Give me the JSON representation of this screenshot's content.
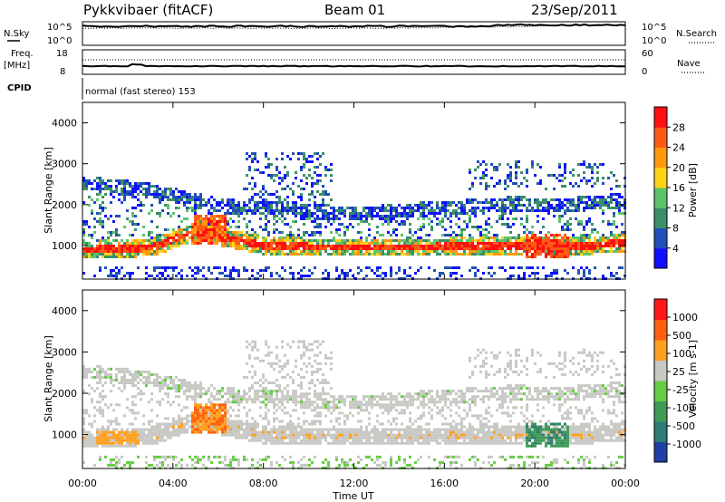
{
  "header": {
    "station": "Pykkvibaer (fitACF)",
    "beam": "Beam 01",
    "date": "23/Sep/2011"
  },
  "panel_top": {
    "nsky_label": "N.Sky",
    "nsky_ticks": [
      "10^5",
      "10^0"
    ],
    "nsearch_label": "N.Search",
    "nsearch_ticks": [
      "10^5",
      "10^0"
    ],
    "freq_label": "Freq.",
    "freq_unit": "[MHz]",
    "freq_ticks": [
      "18",
      "8"
    ],
    "nave_label": "Nave",
    "nave_ticks": [
      "60",
      "0"
    ],
    "cpid_label": "CPID",
    "cpid_text": "normal (fast stereo) 153"
  },
  "chart_data": [
    {
      "type": "heatmap",
      "name": "power",
      "ylabel": "Slant Range [km]",
      "yticks": [
        1000,
        2000,
        3000,
        4000
      ],
      "ylim": [
        180,
        4500
      ],
      "xlim": [
        0,
        24
      ],
      "xticks": [
        "00:00",
        "04:00",
        "08:00",
        "12:00",
        "16:00",
        "20:00",
        "00:00"
      ],
      "colorbar": {
        "label": "Power [dB]",
        "ticks": [
          "4",
          "8",
          "12",
          "16",
          "20",
          "24",
          "28"
        ],
        "colors": [
          "#1010ff",
          "#2050b8",
          "#3a8f6a",
          "#5cc46a",
          "#ffd21a",
          "#ff9a10",
          "#ff5a14",
          "#ff1010"
        ]
      },
      "bands": [
        {
          "t": [
            0,
            3,
            5,
            6,
            8,
            11,
            16,
            20,
            22,
            24
          ],
          "r": [
            920,
            990,
            1380,
            1250,
            1030,
            980,
            1000,
            1050,
            1020,
            1100
          ],
          "level": 7
        },
        {
          "t": [
            0,
            3,
            6,
            9,
            12,
            16,
            19,
            21,
            24
          ],
          "r": [
            2550,
            2380,
            2000,
            1900,
            1800,
            1950,
            2050,
            2000,
            2150
          ],
          "level": 3
        }
      ]
    },
    {
      "type": "heatmap",
      "name": "velocity",
      "ylabel": "Slant Range [km]",
      "yticks": [
        1000,
        2000,
        3000,
        4000
      ],
      "ylim": [
        180,
        4500
      ],
      "xlim": [
        0,
        24
      ],
      "xticks": [
        "00:00",
        "04:00",
        "08:00",
        "12:00",
        "16:00",
        "20:00",
        "00:00"
      ],
      "xlabel": "Time UT",
      "colorbar": {
        "label": "Velocity [m s-1]",
        "ticks": [
          "1000",
          "500",
          "100",
          "25",
          "-25",
          "-100",
          "-500",
          "-1000"
        ],
        "colors": [
          "#1f3fa6",
          "#2e7a74",
          "#3f9a58",
          "#66cc44",
          "#c8c8c4",
          "#ffa020",
          "#ff6010",
          "#ff1818"
        ]
      }
    }
  ]
}
